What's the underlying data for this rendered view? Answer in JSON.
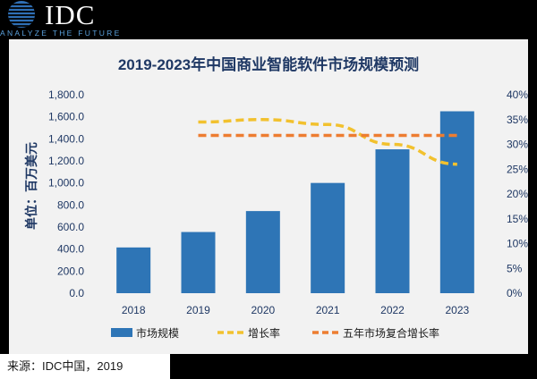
{
  "header": {
    "logo_text": "IDC",
    "tagline": "ANALYZE THE FUTURE"
  },
  "footer": {
    "source": "来源：IDC中国，2019"
  },
  "chart_data": {
    "type": "bar",
    "title": "2019-2023年中国商业智能软件市场规模预测",
    "ylabel": "单位：百万美元",
    "categories": [
      "2018",
      "2019",
      "2020",
      "2021",
      "2022",
      "2023"
    ],
    "ylim": [
      0,
      1800
    ],
    "y_ticks": [
      "0.0",
      "200.0",
      "400.0",
      "600.0",
      "800.0",
      "1,000.0",
      "1,200.0",
      "1,400.0",
      "1,600.0",
      "1,800.0"
    ],
    "y2lim": [
      0,
      40
    ],
    "y2_ticks": [
      "0%",
      "5%",
      "10%",
      "15%",
      "20%",
      "25%",
      "30%",
      "35%",
      "40%"
    ],
    "series": [
      {
        "name": "市场规模",
        "type": "bar",
        "axis": "left",
        "color": "#2e75b6",
        "values": [
          415,
          555,
          745,
          1000,
          1305,
          1650
        ]
      },
      {
        "name": "增长率",
        "type": "line",
        "axis": "right",
        "style": "dashed",
        "color": "#f2c12e",
        "values": [
          null,
          34.5,
          35.0,
          34.0,
          30.0,
          26.0
        ]
      },
      {
        "name": "五年市场复合增长率",
        "type": "line",
        "axis": "right",
        "style": "dashed",
        "color": "#ed7d31",
        "values": [
          null,
          31.8,
          31.8,
          31.8,
          31.8,
          31.8
        ]
      }
    ],
    "legend_position": "bottom",
    "grid": false
  },
  "colors": {
    "background": "#000000",
    "panel": "#f2f2f2",
    "title": "#1f3864",
    "axis_text": "#1f3864",
    "logo_blue": "#5aa0dc"
  }
}
